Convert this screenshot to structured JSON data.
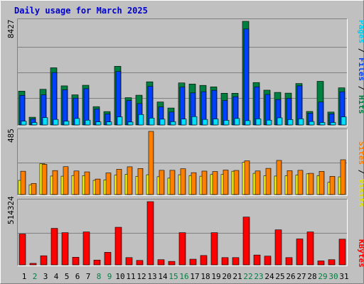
{
  "title": "Daily usage for March 2025",
  "colors": {
    "background": "#c0c0c0",
    "frame_light": "#ffffff",
    "frame_dark": "#808080",
    "grid": "#808080",
    "title": "#0000cc",
    "hits": "#008040",
    "files": "#0040ff",
    "pages": "#00e0ff",
    "visits": "#ffff00",
    "sites": "#ff8000",
    "kbytes": "#ff0000",
    "weekday_label": "#000000",
    "weekend_label": "#008040"
  },
  "chart_data": [
    {
      "type": "bar",
      "panel": "hits-files-pages",
      "categories": [
        "1",
        "2",
        "3",
        "4",
        "5",
        "6",
        "7",
        "8",
        "9",
        "10",
        "11",
        "12",
        "13",
        "14",
        "15",
        "16",
        "17",
        "18",
        "19",
        "20",
        "21",
        "22",
        "23",
        "24",
        "25",
        "26",
        "27",
        "28",
        "29",
        "30",
        "31"
      ],
      "weekend": [
        false,
        true,
        false,
        false,
        false,
        false,
        false,
        true,
        true,
        false,
        false,
        false,
        false,
        false,
        true,
        true,
        false,
        false,
        false,
        false,
        false,
        true,
        true,
        false,
        false,
        false,
        false,
        false,
        true,
        true,
        false
      ],
      "ylabel_max": "8427",
      "ymax": 8427,
      "series": [
        {
          "name": "Hits",
          "values": [
            2750,
            630,
            2900,
            4650,
            3180,
            2450,
            3230,
            1490,
            1090,
            4770,
            2220,
            2420,
            3510,
            1870,
            1380,
            3420,
            3330,
            3220,
            3100,
            2580,
            2580,
            8427,
            3450,
            2830,
            2650,
            2590,
            3370,
            1100,
            3550,
            1050,
            3020
          ]
        },
        {
          "name": "Files",
          "values": [
            2400,
            500,
            2450,
            4260,
            2860,
            2180,
            2950,
            1300,
            890,
            4350,
            1980,
            1740,
            3140,
            1470,
            1050,
            3080,
            2610,
            2710,
            2820,
            1990,
            2300,
            7800,
            3100,
            2480,
            2070,
            2170,
            3180,
            960,
            1860,
            900,
            2700
          ]
        },
        {
          "name": "Pages",
          "values": [
            310,
            200,
            600,
            450,
            310,
            530,
            390,
            250,
            250,
            660,
            240,
            850,
            560,
            470,
            270,
            480,
            680,
            450,
            490,
            380,
            530,
            350,
            500,
            390,
            580,
            440,
            500,
            280,
            200,
            200,
            660
          ]
        }
      ]
    },
    {
      "type": "bar",
      "panel": "visits-sites",
      "categories": [
        "1",
        "2",
        "3",
        "4",
        "5",
        "6",
        "7",
        "8",
        "9",
        "10",
        "11",
        "12",
        "13",
        "14",
        "15",
        "16",
        "17",
        "18",
        "19",
        "20",
        "21",
        "22",
        "23",
        "24",
        "25",
        "26",
        "27",
        "28",
        "29",
        "30",
        "31"
      ],
      "ylabel_max": "485",
      "ymax": 485,
      "series": [
        {
          "name": "Visits",
          "values": [
            109,
            75,
            237,
            142,
            141,
            146,
            145,
            109,
            113,
            149,
            155,
            140,
            152,
            137,
            126,
            152,
            146,
            141,
            154,
            154,
            179,
            247,
            163,
            144,
            142,
            144,
            150,
            159,
            145,
            94,
            136
          ]
        },
        {
          "name": "Sites",
          "values": [
            179,
            85,
            232,
            184,
            214,
            181,
            174,
            119,
            166,
            194,
            213,
            200,
            485,
            186,
            186,
            198,
            168,
            180,
            177,
            188,
            185,
            259,
            181,
            201,
            262,
            183,
            186,
            163,
            178,
            140,
            267
          ]
        }
      ]
    },
    {
      "type": "bar",
      "panel": "kbytes",
      "categories": [
        "1",
        "2",
        "3",
        "4",
        "5",
        "6",
        "7",
        "8",
        "9",
        "10",
        "11",
        "12",
        "13",
        "14",
        "15",
        "16",
        "17",
        "18",
        "19",
        "20",
        "21",
        "22",
        "23",
        "24",
        "25",
        "26",
        "27",
        "28",
        "29",
        "30",
        "31"
      ],
      "ylabel_max": "514324",
      "ymax": 514324,
      "series": [
        {
          "name": "KBytes",
          "values": [
            251000,
            12000,
            74000,
            297000,
            262000,
            62000,
            268000,
            39000,
            102000,
            306000,
            59000,
            36000,
            514324,
            42000,
            28000,
            262000,
            46000,
            76000,
            262000,
            59000,
            59000,
            389000,
            80000,
            71000,
            285000,
            59000,
            211000,
            268000,
            32000,
            42000,
            209000
          ]
        }
      ]
    }
  ]
}
